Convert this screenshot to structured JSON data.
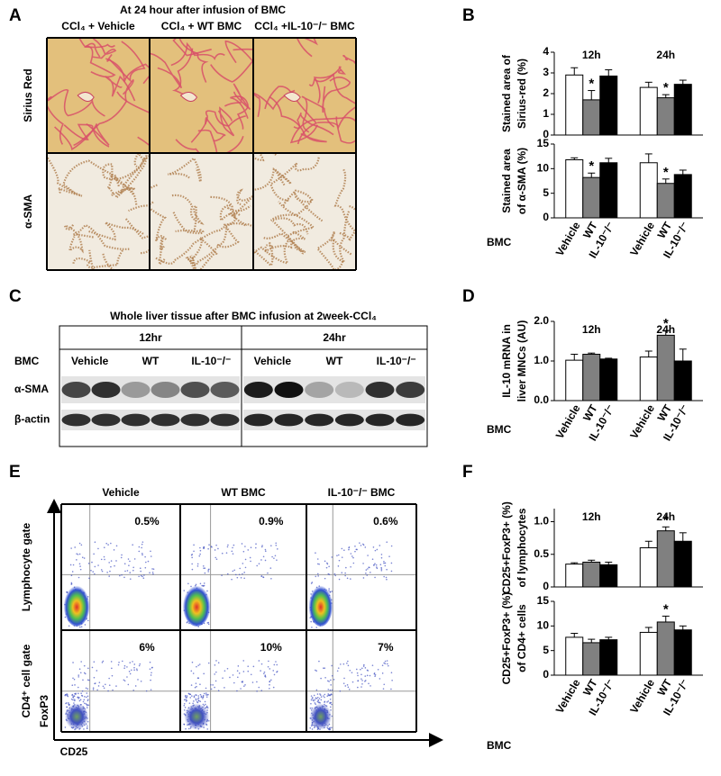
{
  "figure": {
    "panel_labels": [
      "A",
      "B",
      "C",
      "D",
      "E",
      "F"
    ],
    "histology": {
      "title": "At 24 hour after infusion of BMC",
      "columns": [
        "CCl₄ + Vehicle",
        "CCl₄ + WT BMC",
        "CCl₄ +IL-10⁻/⁻ BMC"
      ],
      "rows": [
        "Sirius Red",
        "α-SMA"
      ]
    },
    "western": {
      "title": "Whole liver tissue after BMC infusion at 2week-CCl₄",
      "groups": [
        "12hr",
        "24hr"
      ],
      "row_header": "BMC",
      "lanes": [
        "Vehicle",
        "WT",
        "IL-10⁻/⁻"
      ],
      "blots": [
        "α-SMA",
        "β-actin"
      ]
    },
    "flow": {
      "columns": [
        "Vehicle",
        "WT BMC",
        "IL-10⁻/⁻ BMC"
      ],
      "rows": [
        {
          "label": "Lymphocyte gate",
          "percentages": [
            "0.5%",
            "0.9%",
            "0.6%"
          ]
        },
        {
          "label": "CD4⁺ cell gate",
          "percentages": [
            "6%",
            "10%",
            "7%"
          ]
        }
      ],
      "x_axis": "CD25",
      "y_axis": "FoxP3"
    }
  },
  "chart_data": [
    {
      "type": "bar",
      "categories": [
        "12h",
        "24h"
      ],
      "ylabel": [
        "Stained area of",
        "Sirius-red (%)"
      ],
      "ylim": [
        0,
        4
      ],
      "yticks": [
        0,
        1,
        2,
        3,
        4
      ],
      "bar_labels": false,
      "series": [
        {
          "name": "Vehicle",
          "color": "#ffffff",
          "values": [
            2.9,
            2.3
          ],
          "errors": [
            0.35,
            0.25
          ],
          "annotations": [
            null,
            null
          ]
        },
        {
          "name": "WT",
          "color": "#808080",
          "values": [
            1.7,
            1.8
          ],
          "errors": [
            0.45,
            0.15
          ],
          "annotations": [
            "*",
            "*"
          ]
        },
        {
          "name": "IL-10⁻/⁻",
          "color": "#000000",
          "values": [
            2.85,
            2.45
          ],
          "errors": [
            0.3,
            0.2
          ],
          "annotations": [
            null,
            null
          ]
        }
      ]
    },
    {
      "type": "bar",
      "categories": [
        null,
        null
      ],
      "ylabel": [
        "Stained area",
        "of α-SMA (%)"
      ],
      "ylim": [
        0,
        15
      ],
      "yticks": [
        0,
        5,
        10,
        15
      ],
      "bar_labels": true,
      "xlabel": "BMC",
      "series": [
        {
          "name": "Vehicle",
          "color": "#ffffff",
          "values": [
            11.8,
            11.2
          ],
          "errors": [
            0.4,
            1.8
          ],
          "annotations": [
            null,
            null
          ]
        },
        {
          "name": "WT",
          "color": "#808080",
          "values": [
            8.2,
            7
          ],
          "errors": [
            0.9,
            0.9
          ],
          "annotations": [
            "*",
            "*"
          ]
        },
        {
          "name": "IL-10⁻/⁻",
          "color": "#000000",
          "values": [
            11.2,
            8.8
          ],
          "errors": [
            0.9,
            0.9
          ],
          "annotations": [
            null,
            null
          ]
        }
      ]
    },
    {
      "type": "bar",
      "categories": [
        "12h",
        "24h"
      ],
      "ylabel": [
        "IL-10 mRNA in",
        "liver MNCs (AU)"
      ],
      "ylim": [
        0,
        2
      ],
      "yticks": [
        {
          "value": 0,
          "label": "0.0"
        },
        {
          "value": 1,
          "label": "1.0"
        },
        {
          "value": 2,
          "label": "2.0"
        }
      ],
      "bar_labels": true,
      "xlabel": "BMC",
      "series": [
        {
          "name": "Vehicle",
          "color": "#ffffff",
          "values": [
            1.02,
            1.1
          ],
          "errors": [
            0.15,
            0.15
          ],
          "annotations": [
            null,
            null
          ]
        },
        {
          "name": "WT",
          "color": "#808080",
          "values": [
            1.17,
            1.65
          ],
          "errors": [
            0.03,
            0.12
          ],
          "annotations": [
            null,
            "*"
          ]
        },
        {
          "name": "IL-10⁻/⁻",
          "color": "#000000",
          "values": [
            1.05,
            1.0
          ],
          "errors": [
            0.02,
            0.3
          ],
          "annotations": [
            null,
            null
          ]
        }
      ]
    },
    {
      "type": "bar",
      "categories": [
        "12h",
        "24h"
      ],
      "ylabel": [
        "CD25+FoxP3+ (%)",
        "of lymphocytes"
      ],
      "ylim": [
        0,
        1.2
      ],
      "yticks": [
        0,
        0.5,
        {
          "value": 1,
          "label": "1.0"
        }
      ],
      "bar_labels": false,
      "series": [
        {
          "name": "Vehicle",
          "color": "#ffffff",
          "values": [
            0.35,
            0.6
          ],
          "errors": [
            0.02,
            0.1
          ],
          "annotations": [
            null,
            null
          ]
        },
        {
          "name": "WT",
          "color": "#808080",
          "values": [
            0.38,
            0.86
          ],
          "errors": [
            0.03,
            0.06
          ],
          "annotations": [
            null,
            "*"
          ]
        },
        {
          "name": "IL-10⁻/⁻",
          "color": "#000000",
          "values": [
            0.34,
            0.7
          ],
          "errors": [
            0.04,
            0.13
          ],
          "annotations": [
            null,
            null
          ]
        }
      ]
    },
    {
      "type": "bar",
      "categories": [
        null,
        null
      ],
      "ylabel": [
        "CD25+FoxP3+ (%)",
        "of CD4+ cells"
      ],
      "ylim": [
        0,
        15
      ],
      "yticks": [
        0,
        5,
        10,
        15
      ],
      "bar_labels": true,
      "xlabel": "BMC",
      "series": [
        {
          "name": "Vehicle",
          "color": "#ffffff",
          "values": [
            7.7,
            8.7
          ],
          "errors": [
            0.8,
            1.0
          ],
          "annotations": [
            null,
            null
          ]
        },
        {
          "name": "WT",
          "color": "#808080",
          "values": [
            6.6,
            10.8
          ],
          "errors": [
            0.7,
            1.2
          ],
          "annotations": [
            null,
            "*"
          ]
        },
        {
          "name": "IL-10⁻/⁻",
          "color": "#000000",
          "values": [
            7.2,
            9.2
          ],
          "errors": [
            0.5,
            0.8
          ],
          "annotations": [
            null,
            null
          ]
        }
      ]
    }
  ]
}
